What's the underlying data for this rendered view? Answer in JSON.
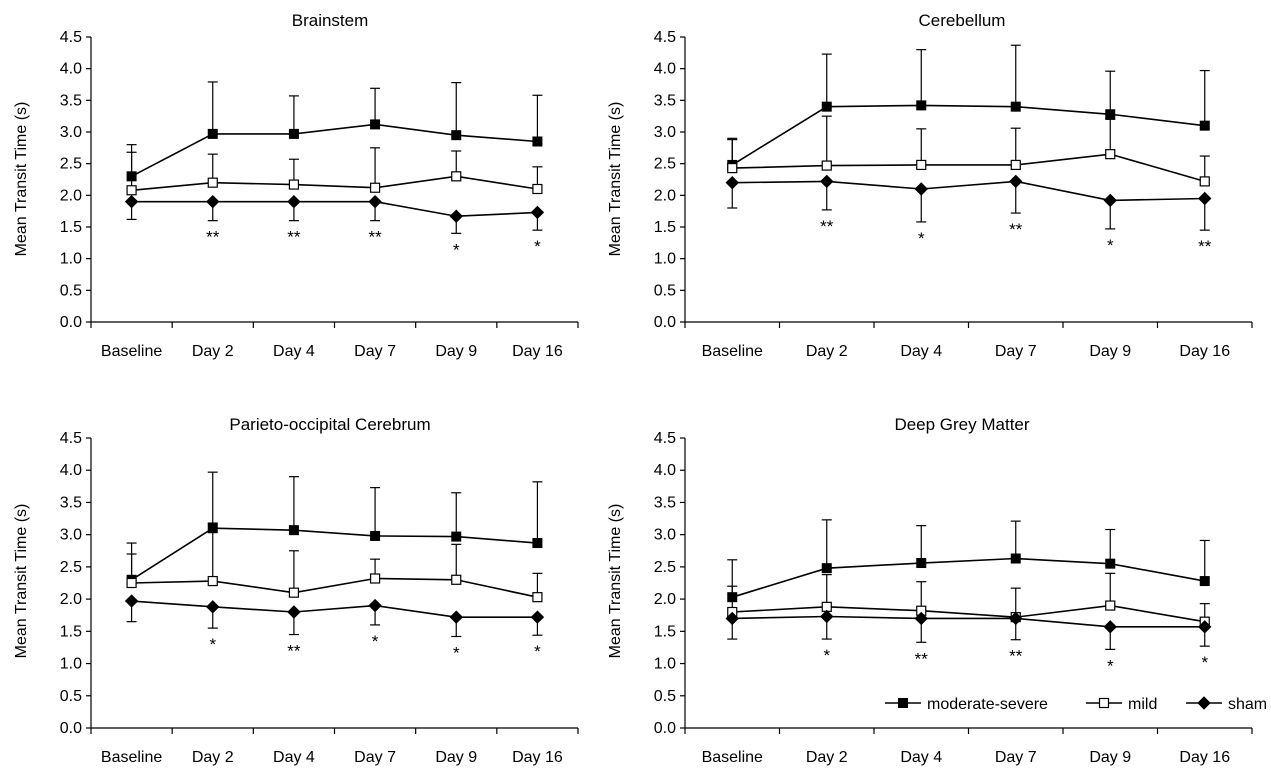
{
  "figure": {
    "legend": {
      "placement": "bottom-right of last panel",
      "items": [
        {
          "label": "moderate-severe",
          "marker": "filled-square"
        },
        {
          "label": "mild",
          "marker": "open-square"
        },
        {
          "label": "sham",
          "marker": "filled-diamond"
        }
      ]
    },
    "colors": {
      "line": "#000000",
      "background": "#ffffff"
    }
  },
  "chart_data": [
    {
      "type": "line",
      "title": "Brainstem",
      "xlabel": "",
      "ylabel": "Mean Transit Time (s)",
      "categories": [
        "Baseline",
        "Day 2",
        "Day 4",
        "Day 7",
        "Day 9",
        "Day 16"
      ],
      "ylim": [
        0,
        4.5
      ],
      "yticks": [
        "0.0",
        "0.5",
        "1.0",
        "1.5",
        "2.0",
        "2.5",
        "3.0",
        "3.5",
        "4.0",
        "4.5"
      ],
      "series": [
        {
          "name": "moderate-severe",
          "marker": "filled-square",
          "values": [
            2.3,
            2.97,
            2.97,
            3.12,
            2.95,
            2.85
          ],
          "error_plus": [
            0.5,
            0.82,
            0.6,
            0.57,
            0.83,
            0.73
          ]
        },
        {
          "name": "mild",
          "marker": "open-square",
          "values": [
            2.08,
            2.2,
            2.17,
            2.12,
            2.3,
            2.1
          ],
          "error_plus": [
            0.6,
            0.45,
            0.4,
            0.63,
            0.4,
            0.35
          ]
        },
        {
          "name": "sham",
          "marker": "filled-diamond",
          "values": [
            1.9,
            1.9,
            1.9,
            1.9,
            1.67,
            1.73
          ],
          "error_minus": [
            0.28,
            0.3,
            0.3,
            0.3,
            0.27,
            0.28
          ]
        }
      ],
      "annotations": [
        "",
        "**",
        "**",
        "**",
        "*",
        "*"
      ]
    },
    {
      "type": "line",
      "title": "Cerebellum",
      "xlabel": "",
      "ylabel": "Mean Transit Time (s)",
      "categories": [
        "Baseline",
        "Day 2",
        "Day 4",
        "Day 7",
        "Day 9",
        "Day 16"
      ],
      "ylim": [
        0,
        4.5
      ],
      "yticks": [
        "0.0",
        "0.5",
        "1.0",
        "1.5",
        "2.0",
        "2.5",
        "3.0",
        "3.5",
        "4.0",
        "4.5"
      ],
      "series": [
        {
          "name": "moderate-severe",
          "marker": "filled-square",
          "values": [
            2.48,
            3.4,
            3.42,
            3.4,
            3.28,
            3.1
          ],
          "error_plus": [
            0.42,
            0.83,
            0.88,
            0.97,
            0.68,
            0.87
          ]
        },
        {
          "name": "mild",
          "marker": "open-square",
          "values": [
            2.43,
            2.47,
            2.48,
            2.48,
            2.65,
            2.22
          ],
          "error_plus": [
            0.45,
            0.78,
            0.57,
            0.58,
            0.55,
            0.4
          ]
        },
        {
          "name": "sham",
          "marker": "filled-diamond",
          "values": [
            2.2,
            2.22,
            2.1,
            2.22,
            1.92,
            1.95
          ],
          "error_minus": [
            0.4,
            0.45,
            0.52,
            0.5,
            0.45,
            0.5
          ]
        }
      ],
      "annotations": [
        "",
        "**",
        "*",
        "**",
        "*",
        "**"
      ]
    },
    {
      "type": "line",
      "title": "Parieto-occipital Cerebrum",
      "xlabel": "",
      "ylabel": "Mean Transit Time (s)",
      "categories": [
        "Baseline",
        "Day 2",
        "Day 4",
        "Day 7",
        "Day 9",
        "Day 16"
      ],
      "ylim": [
        0,
        4.5
      ],
      "yticks": [
        "0.0",
        "0.5",
        "1.0",
        "1.5",
        "2.0",
        "2.5",
        "3.0",
        "3.5",
        "4.0",
        "4.5"
      ],
      "series": [
        {
          "name": "moderate-severe",
          "marker": "filled-square",
          "values": [
            2.3,
            3.1,
            3.07,
            2.98,
            2.97,
            2.87
          ],
          "error_plus": [
            0.57,
            0.87,
            0.83,
            0.75,
            0.68,
            0.95
          ]
        },
        {
          "name": "mild",
          "marker": "open-square",
          "values": [
            2.25,
            2.28,
            2.1,
            2.32,
            2.3,
            2.03
          ],
          "error_plus": [
            0.45,
            0.9,
            0.65,
            0.3,
            0.55,
            0.37
          ]
        },
        {
          "name": "sham",
          "marker": "filled-diamond",
          "values": [
            1.97,
            1.88,
            1.8,
            1.9,
            1.72,
            1.72
          ],
          "error_minus": [
            0.32,
            0.33,
            0.35,
            0.3,
            0.3,
            0.28
          ]
        }
      ],
      "annotations": [
        "",
        "*",
        "**",
        "*",
        "*",
        "*"
      ]
    },
    {
      "type": "line",
      "title": "Deep Grey Matter",
      "xlabel": "",
      "ylabel": "Mean Transit Time (s)",
      "categories": [
        "Baseline",
        "Day 2",
        "Day 4",
        "Day 7",
        "Day 9",
        "Day 16"
      ],
      "ylim": [
        0,
        4.5
      ],
      "yticks": [
        "0.0",
        "0.5",
        "1.0",
        "1.5",
        "2.0",
        "2.5",
        "3.0",
        "3.5",
        "4.0",
        "4.5"
      ],
      "series": [
        {
          "name": "moderate-severe",
          "marker": "filled-square",
          "values": [
            2.03,
            2.48,
            2.56,
            2.63,
            2.55,
            2.28
          ],
          "error_plus": [
            0.58,
            0.75,
            0.58,
            0.58,
            0.53,
            0.63
          ]
        },
        {
          "name": "mild",
          "marker": "open-square",
          "values": [
            1.8,
            1.88,
            1.82,
            1.72,
            1.9,
            1.65
          ],
          "error_plus": [
            0.4,
            0.5,
            0.45,
            0.45,
            0.5,
            0.28
          ]
        },
        {
          "name": "sham",
          "marker": "filled-diamond",
          "values": [
            1.7,
            1.73,
            1.7,
            1.7,
            1.57,
            1.57
          ],
          "error_minus": [
            0.32,
            0.35,
            0.37,
            0.33,
            0.35,
            0.3
          ]
        }
      ],
      "annotations": [
        "",
        "*",
        "**",
        "**",
        "*",
        "*"
      ]
    }
  ]
}
